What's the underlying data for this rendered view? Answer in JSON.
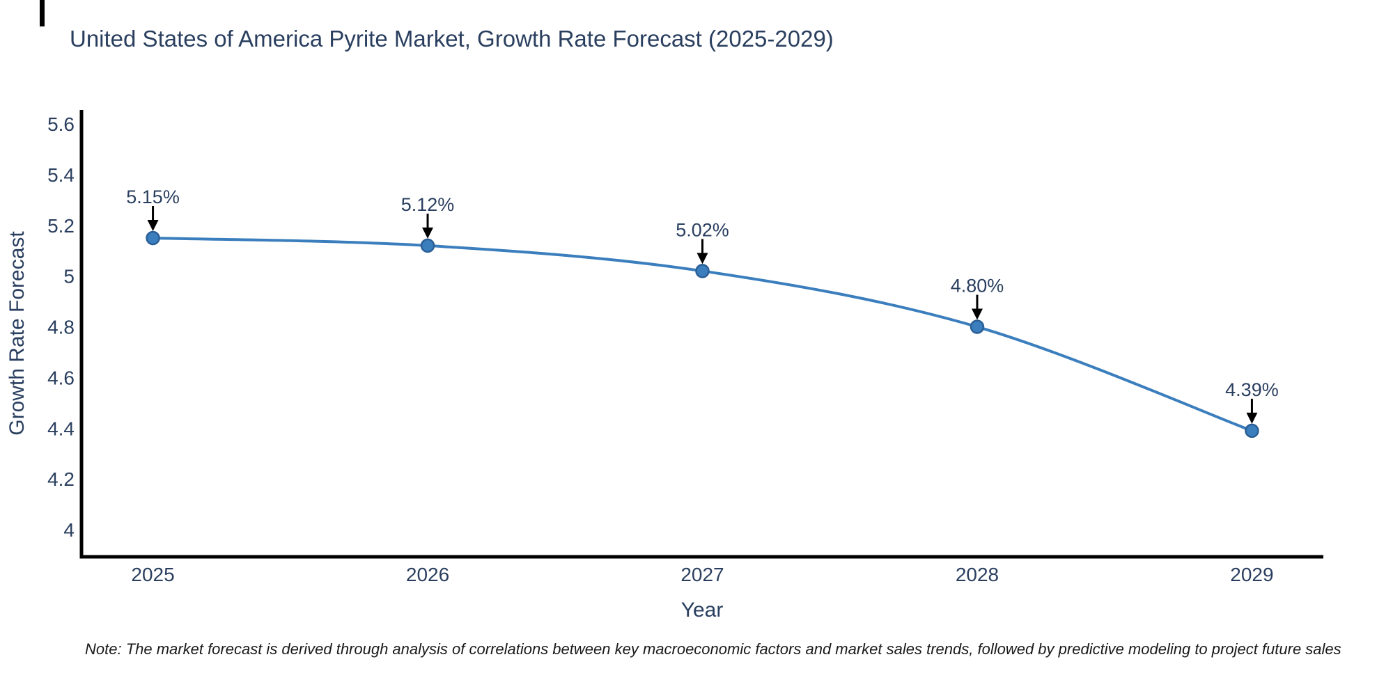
{
  "page": {
    "background": "#ffffff"
  },
  "chart_data": {
    "type": "line",
    "title": "United States of America Pyrite Market, Growth Rate Forecast (2025-2029)",
    "xlabel": "Year",
    "ylabel": "Growth Rate Forecast",
    "x": [
      2025,
      2026,
      2027,
      2028,
      2029
    ],
    "values": [
      5.15,
      5.12,
      5.02,
      4.8,
      4.39
    ],
    "point_labels": [
      "5.15%",
      "5.12%",
      "5.02%",
      "4.80%",
      "4.39%"
    ],
    "xtick_labels": [
      "2025",
      "2026",
      "2027",
      "2028",
      "2029"
    ],
    "xticks": [
      2025,
      2026,
      2027,
      2028,
      2029
    ],
    "yticks": [
      4,
      4.2,
      4.4,
      4.6,
      4.8,
      5,
      5.2,
      5.4,
      5.6
    ],
    "ytick_labels": [
      "4",
      "4.2",
      "4.4",
      "4.6",
      "4.8",
      "5",
      "5.2",
      "5.4",
      "5.6"
    ],
    "xlim": [
      2024.74,
      2029.26
    ],
    "ylim": [
      3.893,
      5.655
    ],
    "grid": false,
    "legend": "none",
    "line_shape": "spline",
    "line_color": "#3b7ebd",
    "marker_color": "#3b7ebd",
    "marker_edge_color": "#2a5f96",
    "arrow_color": "#000000",
    "axis_color": "#000000",
    "text_color": "#2a3f5f",
    "note": "Note: The market forecast is derived through analysis of correlations between key macroeconomic factors and market sales trends, followed by predictive modeling to project future sales"
  }
}
